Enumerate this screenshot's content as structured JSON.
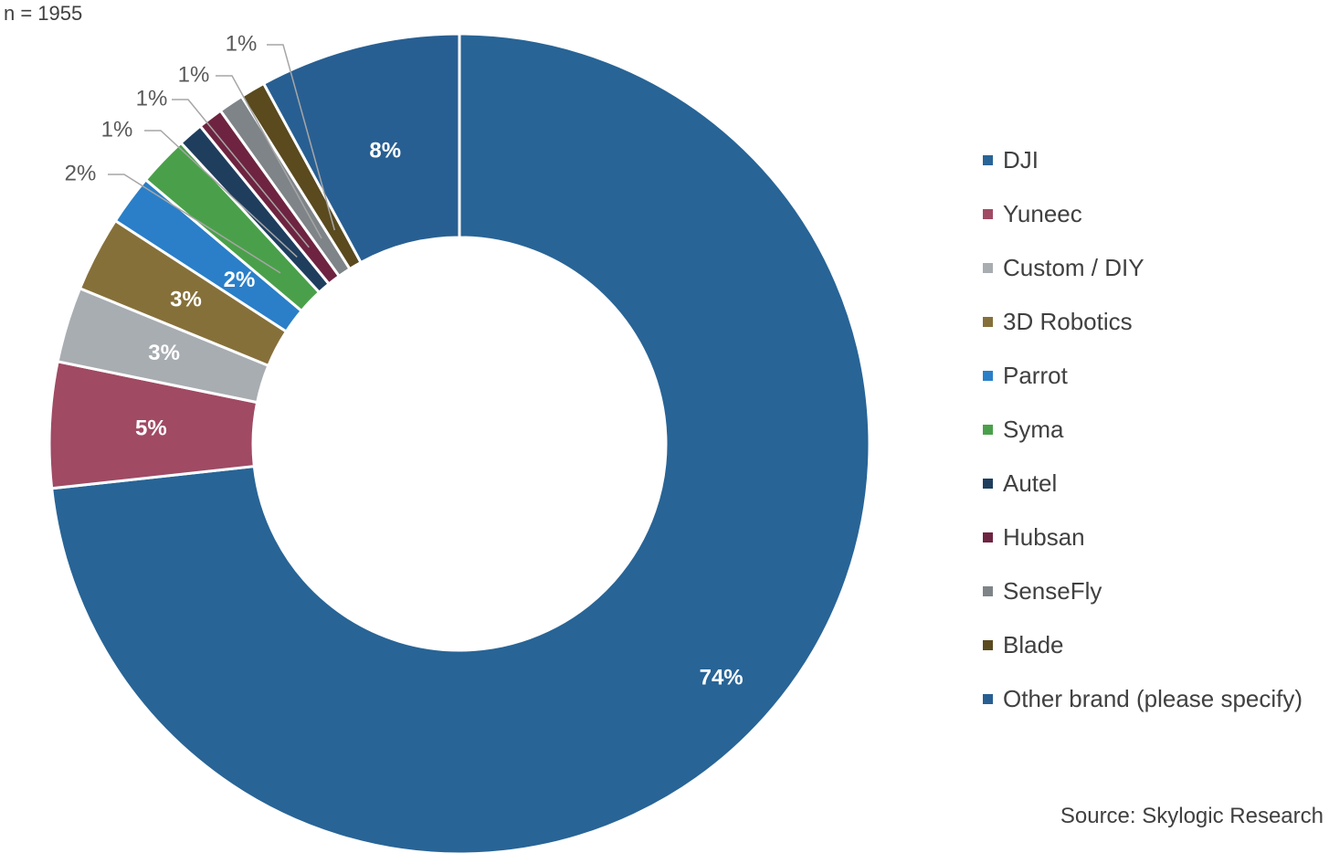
{
  "sample_note": "n = 1955",
  "source": "Source: Skylogic Research",
  "chart_data": {
    "type": "pie",
    "donut": true,
    "legend_position": "right",
    "categories": [
      "DJI",
      "Yuneec",
      "Custom / DIY",
      "3D Robotics",
      "Parrot",
      "Syma",
      "Autel",
      "Hubsan",
      "SenseFly",
      "Blade",
      "Other brand (please specify)"
    ],
    "values": [
      74,
      5,
      3,
      3,
      2,
      2,
      1,
      1,
      1,
      1,
      8
    ],
    "data_labels": [
      "74%",
      "5%",
      "3%",
      "3%",
      "2%",
      "2%",
      "1%",
      "1%",
      "1%",
      "1%",
      "8%"
    ],
    "colors": [
      "#286496",
      "#A04A64",
      "#A8ADB2",
      "#86703A",
      "#2A7FC8",
      "#4AA04A",
      "#1F3E5E",
      "#6E2440",
      "#7E8488",
      "#5A4A1E",
      "#285F92"
    ]
  }
}
